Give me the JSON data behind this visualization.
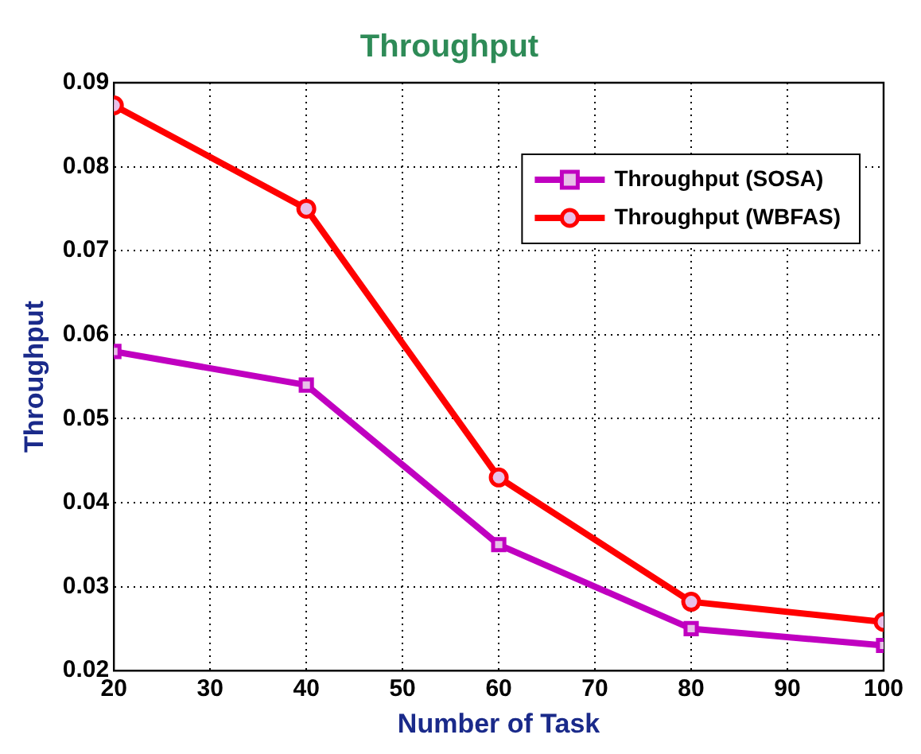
{
  "chart_data": {
    "type": "line",
    "title": "Throughput",
    "xlabel": "Number of Task",
    "ylabel": "Throughput",
    "x": [
      20,
      40,
      60,
      80,
      100
    ],
    "series": [
      {
        "name": "Throughput (SOSA)",
        "color": "#c000c0",
        "marker": "square",
        "values": [
          0.058,
          0.054,
          0.035,
          0.025,
          0.023
        ]
      },
      {
        "name": "Throughput (WBFAS)",
        "color": "#ff0000",
        "marker": "circle",
        "values": [
          0.0873,
          0.075,
          0.043,
          0.0282,
          0.0258
        ]
      }
    ],
    "xlim": [
      20,
      100
    ],
    "xticks": [
      20,
      30,
      40,
      50,
      60,
      70,
      80,
      90,
      100
    ],
    "ylim": [
      0.02,
      0.09
    ],
    "yticks": [
      0.02,
      0.03,
      0.04,
      0.05,
      0.06,
      0.07,
      0.08,
      0.09
    ],
    "grid": true,
    "legend": "top right",
    "line_style": "solid"
  }
}
